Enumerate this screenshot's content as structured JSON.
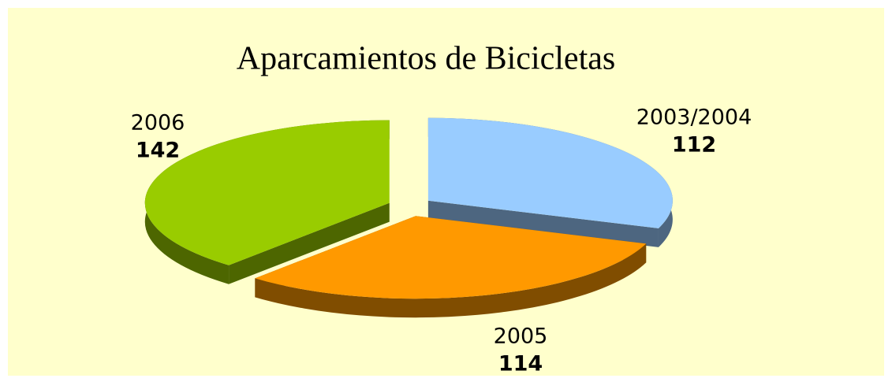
{
  "chart_data": {
    "type": "pie",
    "title": "Aparcamientos de Bicicletas",
    "categories": [
      "2003/2004",
      "2005",
      "2006"
    ],
    "values": [
      112,
      114,
      142
    ],
    "colors": [
      "#99ccff",
      "#ff9900",
      "#99cc00"
    ]
  }
}
